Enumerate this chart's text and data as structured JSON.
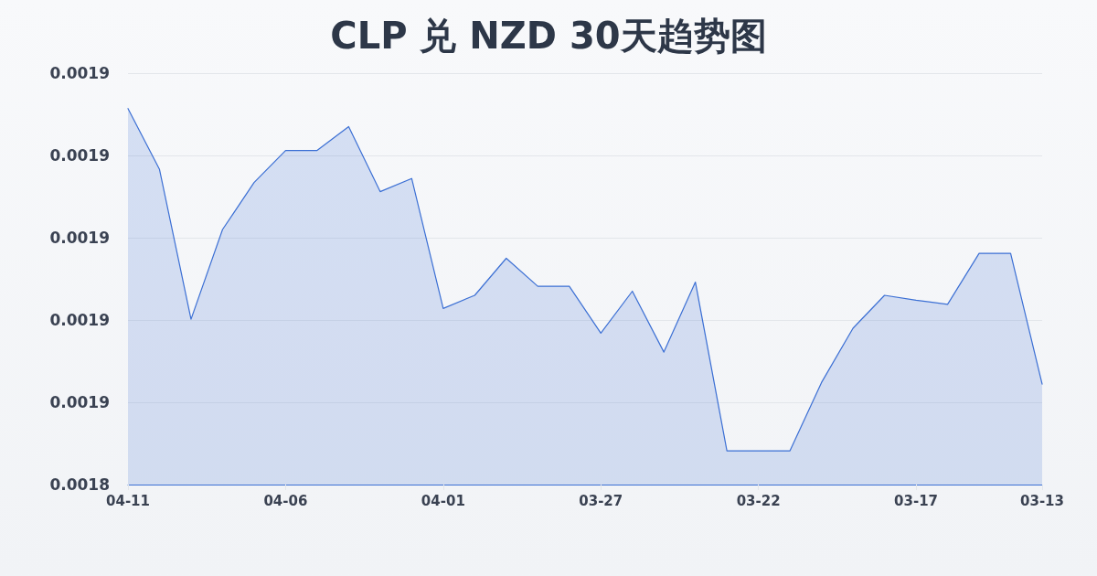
{
  "chart_data": {
    "type": "area",
    "title": "CLP 兑 NZD 30天趋势图",
    "categories": [
      "04-11",
      null,
      null,
      null,
      null,
      "04-06",
      null,
      null,
      null,
      null,
      "04-01",
      null,
      null,
      null,
      null,
      "03-27",
      null,
      null,
      null,
      null,
      "03-22",
      null,
      null,
      null,
      null,
      "03-17",
      null,
      null,
      null,
      "03-13"
    ],
    "values": [
      0.0018857,
      0.0018783,
      0.0018601,
      0.001871,
      0.0018767,
      0.0018806,
      0.0018806,
      0.0018835,
      0.0018756,
      0.0018772,
      0.0018614,
      0.001863,
      0.0018675,
      0.0018641,
      0.0018641,
      0.0018584,
      0.0018635,
      0.0018561,
      0.0018646,
      0.0018441,
      0.0018441,
      0.0018441,
      0.0018524,
      0.001859,
      0.001863,
      0.0018624,
      0.0018619,
      0.0018681,
      0.0018681,
      0.0018522
    ],
    "color": "#3b6fd4",
    "ylim": [
      0.00184,
      0.00189
    ],
    "yticks": [
      {
        "value": 0.00184,
        "label": "0.0018"
      },
      {
        "value": 0.00185,
        "label": "0.0019"
      },
      {
        "value": 0.00186,
        "label": "0.0019"
      },
      {
        "value": 0.00187,
        "label": "0.0019"
      },
      {
        "value": 0.00188,
        "label": "0.0019"
      },
      {
        "value": 0.00189,
        "label": "0.0019"
      }
    ],
    "grid": "y",
    "marker": "none",
    "line_style": "solid"
  }
}
